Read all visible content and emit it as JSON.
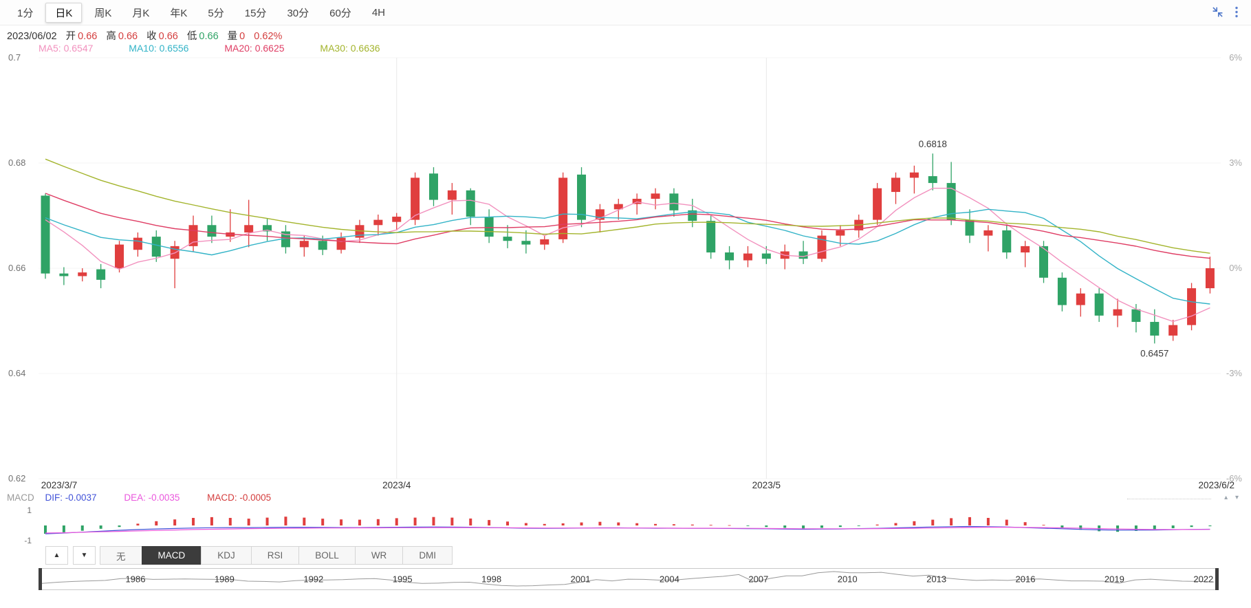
{
  "colors": {
    "up": "#e03e3e",
    "down": "#2fa366",
    "ma5": "#f291be",
    "ma10": "#32b3c7",
    "ma20": "#df3d64",
    "ma30": "#a3b42c",
    "dif": "#4152d8",
    "dea": "#ea57dd",
    "macd_value": "#d43d3d",
    "grid_h": "#f5f5f5",
    "grid_v": "#e8e8e8",
    "axis_text": "#707070",
    "axis_text_right": "#a9a9a9",
    "nav_line": "#999999",
    "annotation_text": "#3a3a3a"
  },
  "tabbar": {
    "items": [
      {
        "label": "1分",
        "active": false
      },
      {
        "label": "日K",
        "active": true
      },
      {
        "label": "周K",
        "active": false
      },
      {
        "label": "月K",
        "active": false
      },
      {
        "label": "年K",
        "active": false
      },
      {
        "label": "5分",
        "active": false
      },
      {
        "label": "15分",
        "active": false
      },
      {
        "label": "30分",
        "active": false
      },
      {
        "label": "60分",
        "active": false
      },
      {
        "label": "4H",
        "active": false
      }
    ],
    "icons": [
      {
        "name": "compress-icon"
      },
      {
        "name": "kebab-menu-icon"
      }
    ]
  },
  "quote": {
    "date": "2023/06/02",
    "open_label": "开",
    "open": "0.66",
    "high_label": "高",
    "high": "0.66",
    "close_label": "收",
    "close": "0.66",
    "low_label": "低",
    "low": "0.66",
    "volume_label": "量",
    "volume": "0",
    "change": "0.62%",
    "up_color": "#d43d3d",
    "down_color": "#2fa366"
  },
  "ma_legend": [
    {
      "label": "MA5: 0.6547",
      "color": "#f291be",
      "period": 5
    },
    {
      "label": "MA10: 0.6556",
      "color": "#32b3c7",
      "period": 10
    },
    {
      "label": "MA20: 0.6625",
      "color": "#df3d64",
      "period": 20
    },
    {
      "label": "MA30: 0.6636",
      "color": "#a3b42c",
      "period": 30
    }
  ],
  "macd_legend": {
    "title": "MACD",
    "items": [
      {
        "label": "DIF: -0.0037",
        "color": "#4152d8"
      },
      {
        "label": "DEA: -0.0035",
        "color": "#ea57dd"
      },
      {
        "label": "MACD: -0.0005",
        "color": "#d43d3d"
      }
    ],
    "collapse_icons": "▴ ▾"
  },
  "indicator_panel": {
    "up_button": "▲",
    "down_button": "▼",
    "tabs": [
      {
        "label": "无",
        "active": false
      },
      {
        "label": "MACD",
        "active": true
      },
      {
        "label": "KDJ",
        "active": false
      },
      {
        "label": "RSI",
        "active": false
      },
      {
        "label": "BOLL",
        "active": false
      },
      {
        "label": "WR",
        "active": false
      },
      {
        "label": "DMI",
        "active": false
      }
    ]
  },
  "chart_data": [
    {
      "type": "candlestick",
      "title": "Daily K-line 2023/3/7 - 2023/6/2",
      "y_axis_left": {
        "ticks": [
          0.7,
          0.68,
          0.66,
          0.64,
          0.62
        ],
        "range": [
          0.62,
          0.7
        ]
      },
      "y_axis_right": {
        "ticks": [
          "6%",
          "3%",
          "0%",
          "-3%",
          "-6%"
        ]
      },
      "x_axis": {
        "labels": [
          "2023/3/7",
          "2023/4",
          "2023/5",
          "2023/6/2"
        ],
        "label_indices": [
          0,
          19,
          39,
          63
        ],
        "gridline_indices": [
          19,
          39
        ]
      },
      "annotations": [
        {
          "text": "0.6818",
          "candle_index": 48,
          "position": "above"
        },
        {
          "text": "0.6457",
          "candle_index": 60,
          "position": "below"
        }
      ],
      "seed_closes": [
        0.702,
        0.7005,
        0.699,
        0.6975,
        0.696,
        0.6945,
        0.693,
        0.6915,
        0.69,
        0.6885,
        0.687,
        0.6855,
        0.684,
        0.6825,
        0.681,
        0.6795,
        0.678,
        0.6765,
        0.675,
        0.674,
        0.673,
        0.672,
        0.671,
        0.67,
        0.669,
        0.668,
        0.67,
        0.672,
        0.673,
        0.672
      ],
      "candles": [
        [
          "3/7",
          0.6738,
          0.6742,
          0.658,
          0.659
        ],
        [
          "3/8",
          0.659,
          0.6602,
          0.6568,
          0.6585
        ],
        [
          "3/9",
          0.6585,
          0.66,
          0.6575,
          0.6592
        ],
        [
          "3/10",
          0.6598,
          0.6608,
          0.6562,
          0.6578
        ],
        [
          "3/13",
          0.66,
          0.6652,
          0.6592,
          0.6645
        ],
        [
          "3/14",
          0.6635,
          0.6668,
          0.6622,
          0.6658
        ],
        [
          "3/15",
          0.666,
          0.6672,
          0.6612,
          0.6622
        ],
        [
          "3/16",
          0.6618,
          0.6652,
          0.6562,
          0.6642
        ],
        [
          "3/17",
          0.6642,
          0.67,
          0.6632,
          0.6682
        ],
        [
          "3/20",
          0.6682,
          0.67,
          0.6648,
          0.666
        ],
        [
          "3/21",
          0.666,
          0.6712,
          0.665,
          0.6668
        ],
        [
          "3/22",
          0.6668,
          0.673,
          0.664,
          0.6682
        ],
        [
          "3/23",
          0.6682,
          0.6695,
          0.6652,
          0.667
        ],
        [
          "3/24",
          0.667,
          0.6682,
          0.6628,
          0.664
        ],
        [
          "3/27",
          0.664,
          0.6662,
          0.6622,
          0.6652
        ],
        [
          "3/28",
          0.6652,
          0.6662,
          0.6625,
          0.6635
        ],
        [
          "3/29",
          0.6635,
          0.6668,
          0.6628,
          0.6658
        ],
        [
          "3/30",
          0.6658,
          0.6692,
          0.6648,
          0.6682
        ],
        [
          "3/31",
          0.6682,
          0.6702,
          0.6662,
          0.6692
        ],
        [
          "4/3",
          0.6688,
          0.6705,
          0.6672,
          0.6698
        ],
        [
          "4/4",
          0.6692,
          0.6782,
          0.6682,
          0.6772
        ],
        [
          "4/5",
          0.678,
          0.6792,
          0.6718,
          0.673
        ],
        [
          "4/6",
          0.673,
          0.6762,
          0.6702,
          0.6748
        ],
        [
          "4/7",
          0.6748,
          0.6752,
          0.6682,
          0.6698
        ],
        [
          "4/10",
          0.6698,
          0.6712,
          0.6648,
          0.666
        ],
        [
          "4/11",
          0.666,
          0.6682,
          0.6638,
          0.6652
        ],
        [
          "4/12",
          0.6652,
          0.6672,
          0.6628,
          0.6645
        ],
        [
          "4/13",
          0.6645,
          0.6662,
          0.6635,
          0.6655
        ],
        [
          "4/14",
          0.6655,
          0.6782,
          0.6648,
          0.6772
        ],
        [
          "4/17",
          0.6778,
          0.6792,
          0.6678,
          0.6692
        ],
        [
          "4/18",
          0.6692,
          0.6722,
          0.6668,
          0.6712
        ],
        [
          "4/19",
          0.6712,
          0.6732,
          0.6692,
          0.6722
        ],
        [
          "4/20",
          0.6722,
          0.6742,
          0.6702,
          0.6732
        ],
        [
          "4/21",
          0.6732,
          0.6752,
          0.6712,
          0.6742
        ],
        [
          "4/24",
          0.6742,
          0.6752,
          0.6698,
          0.671
        ],
        [
          "4/25",
          0.671,
          0.6732,
          0.6678,
          0.669
        ],
        [
          "4/26",
          0.669,
          0.6702,
          0.6618,
          0.663
        ],
        [
          "4/27",
          0.663,
          0.6642,
          0.6598,
          0.6615
        ],
        [
          "4/28",
          0.6615,
          0.6642,
          0.6602,
          0.6628
        ],
        [
          "5/1",
          0.6628,
          0.6642,
          0.6608,
          0.6618
        ],
        [
          "5/2",
          0.6618,
          0.6645,
          0.6598,
          0.6632
        ],
        [
          "5/3",
          0.6632,
          0.6652,
          0.6608,
          0.6618
        ],
        [
          "5/4",
          0.6618,
          0.6672,
          0.6612,
          0.6662
        ],
        [
          "5/5",
          0.6662,
          0.6682,
          0.6642,
          0.6672
        ],
        [
          "5/8",
          0.6672,
          0.6702,
          0.6658,
          0.6692
        ],
        [
          "5/9",
          0.6692,
          0.6762,
          0.6682,
          0.6752
        ],
        [
          "5/10",
          0.6745,
          0.6782,
          0.6722,
          0.6772
        ],
        [
          "5/11",
          0.6772,
          0.6795,
          0.6742,
          0.6782
        ],
        [
          "5/12",
          0.6775,
          0.6818,
          0.6748,
          0.6762
        ],
        [
          "5/15",
          0.6762,
          0.6802,
          0.6682,
          0.6692
        ],
        [
          "5/16",
          0.6692,
          0.6712,
          0.6648,
          0.6662
        ],
        [
          "5/17",
          0.6662,
          0.6682,
          0.6632,
          0.6672
        ],
        [
          "5/18",
          0.6672,
          0.6682,
          0.6618,
          0.663
        ],
        [
          "5/19",
          0.663,
          0.6652,
          0.6602,
          0.6642
        ],
        [
          "5/22",
          0.6642,
          0.6652,
          0.6572,
          0.6582
        ],
        [
          "5/23",
          0.6582,
          0.6592,
          0.6518,
          0.653
        ],
        [
          "5/24",
          0.653,
          0.6562,
          0.6508,
          0.6552
        ],
        [
          "5/25",
          0.6552,
          0.6562,
          0.6498,
          0.651
        ],
        [
          "5/26",
          0.651,
          0.6542,
          0.6488,
          0.6522
        ],
        [
          "5/29",
          0.6522,
          0.6532,
          0.6478,
          0.6498
        ],
        [
          "5/30",
          0.6498,
          0.6522,
          0.6457,
          0.6472
        ],
        [
          "5/31",
          0.6472,
          0.6502,
          0.6462,
          0.6492
        ],
        [
          "6/1",
          0.6492,
          0.6572,
          0.6482,
          0.6562
        ],
        [
          "6/2",
          0.6562,
          0.6622,
          0.6552,
          0.66
        ]
      ]
    },
    {
      "type": "macd",
      "y_ticks": [
        "1",
        "-1"
      ],
      "hist": [
        -0.55,
        -0.45,
        -0.35,
        -0.22,
        -0.1,
        0.12,
        0.28,
        0.4,
        0.5,
        0.55,
        0.5,
        0.45,
        0.52,
        0.58,
        0.52,
        0.45,
        0.4,
        0.38,
        0.42,
        0.48,
        0.52,
        0.56,
        0.52,
        0.46,
        0.36,
        0.26,
        0.16,
        0.1,
        0.14,
        0.2,
        0.24,
        0.2,
        0.15,
        0.1,
        0.08,
        0.06,
        0.04,
        0.02,
        -0.04,
        -0.1,
        -0.16,
        -0.2,
        -0.16,
        -0.1,
        -0.04,
        0.06,
        0.16,
        0.28,
        0.38,
        0.48,
        0.55,
        0.5,
        0.38,
        0.22,
        0.04,
        -0.14,
        -0.28,
        -0.38,
        -0.42,
        -0.36,
        -0.28,
        -0.18,
        -0.1,
        -0.05
      ],
      "dif": [
        -0.55,
        -0.5,
        -0.44,
        -0.38,
        -0.32,
        -0.27,
        -0.23,
        -0.2,
        -0.17,
        -0.15,
        -0.14,
        -0.14,
        -0.13,
        -0.12,
        -0.12,
        -0.13,
        -0.14,
        -0.14,
        -0.13,
        -0.12,
        -0.11,
        -0.1,
        -0.11,
        -0.12,
        -0.14,
        -0.16,
        -0.18,
        -0.19,
        -0.18,
        -0.17,
        -0.16,
        -0.16,
        -0.17,
        -0.18,
        -0.18,
        -0.19,
        -0.19,
        -0.2,
        -0.21,
        -0.22,
        -0.24,
        -0.25,
        -0.24,
        -0.23,
        -0.21,
        -0.19,
        -0.16,
        -0.13,
        -0.1,
        -0.08,
        -0.07,
        -0.08,
        -0.1,
        -0.14,
        -0.18,
        -0.22,
        -0.26,
        -0.29,
        -0.31,
        -0.31,
        -0.3,
        -0.28,
        -0.26,
        -0.25
      ],
      "dea": [
        -0.5,
        -0.48,
        -0.45,
        -0.42,
        -0.39,
        -0.36,
        -0.33,
        -0.3,
        -0.27,
        -0.25,
        -0.23,
        -0.21,
        -0.2,
        -0.19,
        -0.18,
        -0.17,
        -0.17,
        -0.16,
        -0.16,
        -0.15,
        -0.15,
        -0.14,
        -0.14,
        -0.14,
        -0.15,
        -0.15,
        -0.16,
        -0.17,
        -0.17,
        -0.17,
        -0.17,
        -0.17,
        -0.17,
        -0.17,
        -0.18,
        -0.18,
        -0.18,
        -0.19,
        -0.19,
        -0.2,
        -0.21,
        -0.22,
        -0.22,
        -0.22,
        -0.22,
        -0.21,
        -0.2,
        -0.19,
        -0.17,
        -0.15,
        -0.13,
        -0.12,
        -0.12,
        -0.13,
        -0.14,
        -0.16,
        -0.18,
        -0.21,
        -0.23,
        -0.25,
        -0.27,
        -0.27,
        -0.27,
        -0.26
      ]
    },
    {
      "type": "line",
      "name": "long-term-overview",
      "x_labels": [
        "1986",
        "1989",
        "1992",
        "1995",
        "1998",
        "2001",
        "2004",
        "2007",
        "2010",
        "2013",
        "2016",
        "2019",
        "2022"
      ],
      "values": [
        0.6,
        0.65,
        0.68,
        0.7,
        0.72,
        0.79,
        0.8,
        0.76,
        0.77,
        0.78,
        0.77,
        0.76,
        0.75,
        0.69,
        0.68,
        0.66,
        0.71,
        0.74,
        0.74,
        0.75,
        0.78,
        0.79,
        0.74,
        0.65,
        0.6,
        0.61,
        0.64,
        0.65,
        0.58,
        0.52,
        0.5,
        0.51,
        0.54,
        0.56,
        0.65,
        0.75,
        0.7,
        0.77,
        0.76,
        0.73,
        0.74,
        0.79,
        0.84,
        0.88,
        0.95,
        0.66,
        0.8,
        0.9,
        0.9,
        1.02,
        1.07,
        1.02,
        1.02,
        1.04,
        0.96,
        0.89,
        0.93,
        0.82,
        0.76,
        0.72,
        0.74,
        0.72,
        0.77,
        0.78,
        0.74,
        0.7,
        0.7,
        0.69,
        0.61,
        0.74,
        0.77,
        0.73,
        0.69,
        0.68,
        0.66
      ]
    }
  ]
}
